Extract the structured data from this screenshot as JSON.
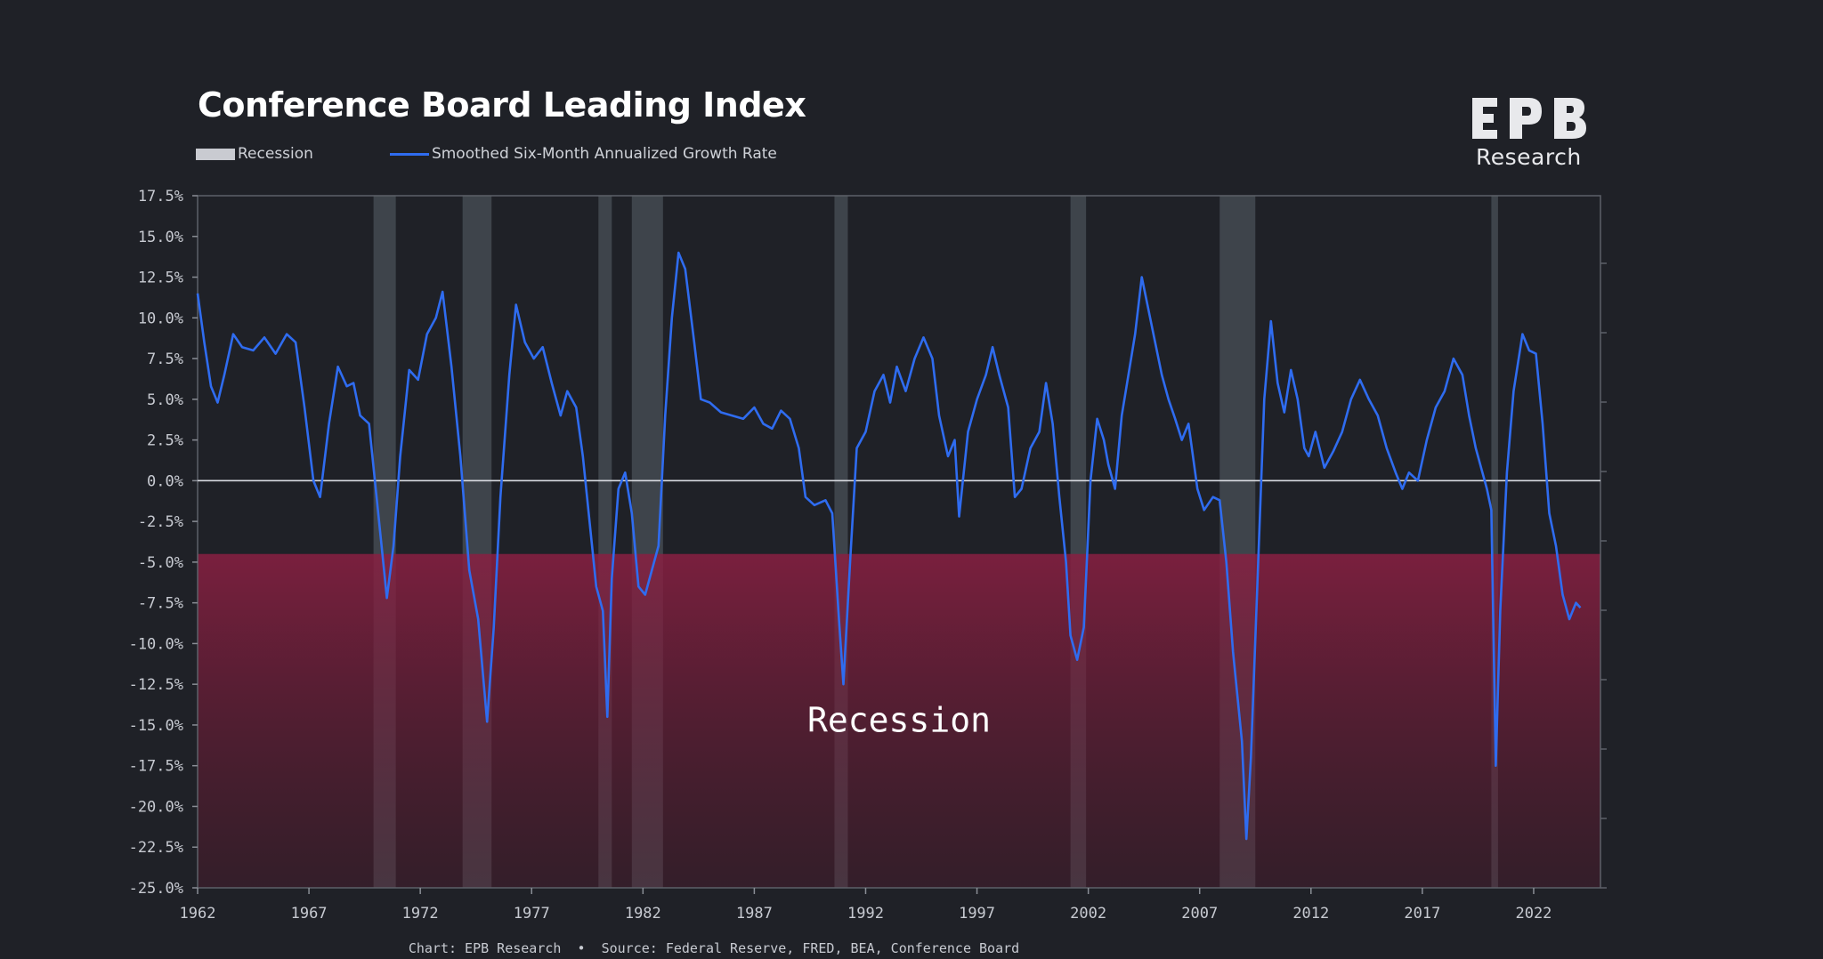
{
  "title": "Conference Board Leading Index",
  "logo": {
    "mark": "EPB",
    "text": "Research"
  },
  "source": "Chart: EPB Research  •  Source: Federal Reserve, FRED, BEA, Conference Board",
  "colors": {
    "background": "#1f2127",
    "series": "#2f6cf0",
    "recession_bar": "#4a5058",
    "recession_zone": "#8a1f42",
    "zero_line": "#d9dce2"
  },
  "chart_data": {
    "type": "line",
    "legend": {
      "position": "top-left",
      "entries": [
        "Recession",
        "Smoothed Six-Month Annualized Growth Rate"
      ]
    },
    "xlim": [
      1962,
      2025
    ],
    "ylim": [
      -25.0,
      17.5
    ],
    "x_ticks": [
      "1962",
      "1967",
      "1972",
      "1977",
      "1982",
      "1987",
      "1992",
      "1997",
      "2002",
      "2007",
      "2012",
      "2017",
      "2022"
    ],
    "y_ticks": [
      "17.5%",
      "15.0%",
      "12.5%",
      "10.0%",
      "7.5%",
      "5.0%",
      "2.5%",
      "0.0%",
      "-2.5%",
      "-5.0%",
      "-7.5%",
      "-10.0%",
      "-12.5%",
      "-15.0%",
      "-17.5%",
      "-20.0%",
      "-22.5%",
      "-25.0%"
    ],
    "grid": false,
    "recessions": [
      [
        1969.9,
        1970.9
      ],
      [
        1973.9,
        1975.2
      ],
      [
        1980.0,
        1980.6
      ],
      [
        1981.5,
        1982.9
      ],
      [
        1990.6,
        1991.2
      ],
      [
        2001.2,
        2001.9
      ],
      [
        2007.9,
        2009.5
      ],
      [
        2020.1,
        2020.4
      ]
    ],
    "recession_zone": {
      "from": -25.0,
      "to": -4.5,
      "label": "Recession"
    },
    "series": [
      {
        "name": "Smoothed Six-Month Annualized Growth Rate",
        "points": [
          [
            1962.0,
            11.5
          ],
          [
            1962.3,
            8.5
          ],
          [
            1962.6,
            5.8
          ],
          [
            1962.9,
            4.8
          ],
          [
            1963.2,
            6.5
          ],
          [
            1963.6,
            9.0
          ],
          [
            1964.0,
            8.2
          ],
          [
            1964.5,
            8.0
          ],
          [
            1965.0,
            8.8
          ],
          [
            1965.5,
            7.8
          ],
          [
            1966.0,
            9.0
          ],
          [
            1966.4,
            8.5
          ],
          [
            1966.8,
            4.5
          ],
          [
            1967.2,
            0.0
          ],
          [
            1967.5,
            -1.0
          ],
          [
            1967.9,
            3.5
          ],
          [
            1968.3,
            7.0
          ],
          [
            1968.7,
            5.8
          ],
          [
            1969.0,
            6.0
          ],
          [
            1969.3,
            4.0
          ],
          [
            1969.7,
            3.5
          ],
          [
            1970.0,
            -0.5
          ],
          [
            1970.3,
            -4.5
          ],
          [
            1970.5,
            -7.2
          ],
          [
            1970.8,
            -4.0
          ],
          [
            1971.1,
            1.5
          ],
          [
            1971.5,
            6.8
          ],
          [
            1971.9,
            6.2
          ],
          [
            1972.3,
            9.0
          ],
          [
            1972.7,
            10.0
          ],
          [
            1973.0,
            11.6
          ],
          [
            1973.4,
            7.0
          ],
          [
            1973.8,
            1.5
          ],
          [
            1974.2,
            -5.5
          ],
          [
            1974.6,
            -8.5
          ],
          [
            1975.0,
            -14.8
          ],
          [
            1975.3,
            -9.0
          ],
          [
            1975.6,
            -1.0
          ],
          [
            1976.0,
            6.5
          ],
          [
            1976.3,
            10.8
          ],
          [
            1976.7,
            8.5
          ],
          [
            1977.1,
            7.5
          ],
          [
            1977.5,
            8.2
          ],
          [
            1977.9,
            6.0
          ],
          [
            1978.3,
            4.0
          ],
          [
            1978.6,
            5.5
          ],
          [
            1979.0,
            4.5
          ],
          [
            1979.3,
            1.5
          ],
          [
            1979.6,
            -2.5
          ],
          [
            1979.9,
            -6.5
          ],
          [
            1980.2,
            -8.0
          ],
          [
            1980.4,
            -14.5
          ],
          [
            1980.6,
            -6.0
          ],
          [
            1980.9,
            -0.5
          ],
          [
            1981.2,
            0.5
          ],
          [
            1981.5,
            -2.0
          ],
          [
            1981.8,
            -6.5
          ],
          [
            1982.1,
            -7.0
          ],
          [
            1982.4,
            -5.5
          ],
          [
            1982.7,
            -4.0
          ],
          [
            1983.0,
            4.0
          ],
          [
            1983.3,
            10.0
          ],
          [
            1983.6,
            14.0
          ],
          [
            1983.9,
            13.0
          ],
          [
            1984.3,
            8.5
          ],
          [
            1984.6,
            5.0
          ],
          [
            1985.0,
            4.8
          ],
          [
            1985.5,
            4.2
          ],
          [
            1986.0,
            4.0
          ],
          [
            1986.5,
            3.8
          ],
          [
            1987.0,
            4.5
          ],
          [
            1987.4,
            3.5
          ],
          [
            1987.8,
            3.2
          ],
          [
            1988.2,
            4.3
          ],
          [
            1988.6,
            3.8
          ],
          [
            1989.0,
            2.0
          ],
          [
            1989.3,
            -1.0
          ],
          [
            1989.7,
            -1.5
          ],
          [
            1990.2,
            -1.2
          ],
          [
            1990.5,
            -2.0
          ],
          [
            1990.8,
            -8.5
          ],
          [
            1991.0,
            -12.5
          ],
          [
            1991.3,
            -5.0
          ],
          [
            1991.6,
            2.0
          ],
          [
            1992.0,
            3.0
          ],
          [
            1992.4,
            5.5
          ],
          [
            1992.8,
            6.5
          ],
          [
            1993.1,
            4.8
          ],
          [
            1993.4,
            7.0
          ],
          [
            1993.8,
            5.5
          ],
          [
            1994.2,
            7.5
          ],
          [
            1994.6,
            8.8
          ],
          [
            1995.0,
            7.5
          ],
          [
            1995.3,
            4.0
          ],
          [
            1995.7,
            1.5
          ],
          [
            1996.0,
            2.5
          ],
          [
            1996.2,
            -2.2
          ],
          [
            1996.6,
            3.0
          ],
          [
            1997.0,
            5.0
          ],
          [
            1997.4,
            6.5
          ],
          [
            1997.7,
            8.2
          ],
          [
            1998.0,
            6.5
          ],
          [
            1998.4,
            4.5
          ],
          [
            1998.7,
            -1.0
          ],
          [
            1999.0,
            -0.5
          ],
          [
            1999.4,
            2.0
          ],
          [
            1999.8,
            3.0
          ],
          [
            2000.1,
            6.0
          ],
          [
            2000.4,
            3.5
          ],
          [
            2000.7,
            -1.0
          ],
          [
            2001.0,
            -5.0
          ],
          [
            2001.2,
            -9.5
          ],
          [
            2001.5,
            -11.0
          ],
          [
            2001.8,
            -9.0
          ],
          [
            2002.1,
            0.0
          ],
          [
            2002.4,
            3.8
          ],
          [
            2002.7,
            2.5
          ],
          [
            2002.9,
            1.0
          ],
          [
            2003.2,
            -0.5
          ],
          [
            2003.5,
            4.0
          ],
          [
            2003.8,
            6.5
          ],
          [
            2004.1,
            9.0
          ],
          [
            2004.4,
            12.5
          ],
          [
            2004.7,
            10.5
          ],
          [
            2005.0,
            8.5
          ],
          [
            2005.3,
            6.5
          ],
          [
            2005.6,
            5.0
          ],
          [
            2005.9,
            3.8
          ],
          [
            2006.2,
            2.5
          ],
          [
            2006.5,
            3.5
          ],
          [
            2006.9,
            -0.5
          ],
          [
            2007.2,
            -1.8
          ],
          [
            2007.6,
            -1.0
          ],
          [
            2007.9,
            -1.2
          ],
          [
            2008.2,
            -5.0
          ],
          [
            2008.5,
            -10.5
          ],
          [
            2008.9,
            -16.0
          ],
          [
            2009.1,
            -22.0
          ],
          [
            2009.3,
            -17.0
          ],
          [
            2009.6,
            -6.0
          ],
          [
            2009.9,
            5.0
          ],
          [
            2010.2,
            9.8
          ],
          [
            2010.5,
            6.0
          ],
          [
            2010.8,
            4.2
          ],
          [
            2011.1,
            6.8
          ],
          [
            2011.4,
            5.0
          ],
          [
            2011.7,
            2.0
          ],
          [
            2011.9,
            1.5
          ],
          [
            2012.2,
            3.0
          ],
          [
            2012.6,
            0.8
          ],
          [
            2013.0,
            1.8
          ],
          [
            2013.4,
            3.0
          ],
          [
            2013.8,
            5.0
          ],
          [
            2014.2,
            6.2
          ],
          [
            2014.6,
            5.0
          ],
          [
            2015.0,
            4.0
          ],
          [
            2015.4,
            2.0
          ],
          [
            2015.8,
            0.5
          ],
          [
            2016.1,
            -0.5
          ],
          [
            2016.4,
            0.5
          ],
          [
            2016.8,
            0.0
          ],
          [
            2017.2,
            2.5
          ],
          [
            2017.6,
            4.5
          ],
          [
            2018.0,
            5.5
          ],
          [
            2018.4,
            7.5
          ],
          [
            2018.8,
            6.5
          ],
          [
            2019.1,
            4.0
          ],
          [
            2019.4,
            2.0
          ],
          [
            2019.7,
            0.5
          ],
          [
            2019.9,
            -0.5
          ],
          [
            2020.1,
            -1.8
          ],
          [
            2020.3,
            -17.5
          ],
          [
            2020.5,
            -8.0
          ],
          [
            2020.8,
            0.5
          ],
          [
            2021.1,
            5.5
          ],
          [
            2021.5,
            9.0
          ],
          [
            2021.8,
            8.0
          ],
          [
            2022.1,
            7.8
          ],
          [
            2022.4,
            3.5
          ],
          [
            2022.7,
            -2.0
          ],
          [
            2023.0,
            -4.0
          ],
          [
            2023.3,
            -7.0
          ],
          [
            2023.6,
            -8.5
          ],
          [
            2023.9,
            -7.5
          ],
          [
            2024.1,
            -7.8
          ]
        ]
      }
    ]
  }
}
